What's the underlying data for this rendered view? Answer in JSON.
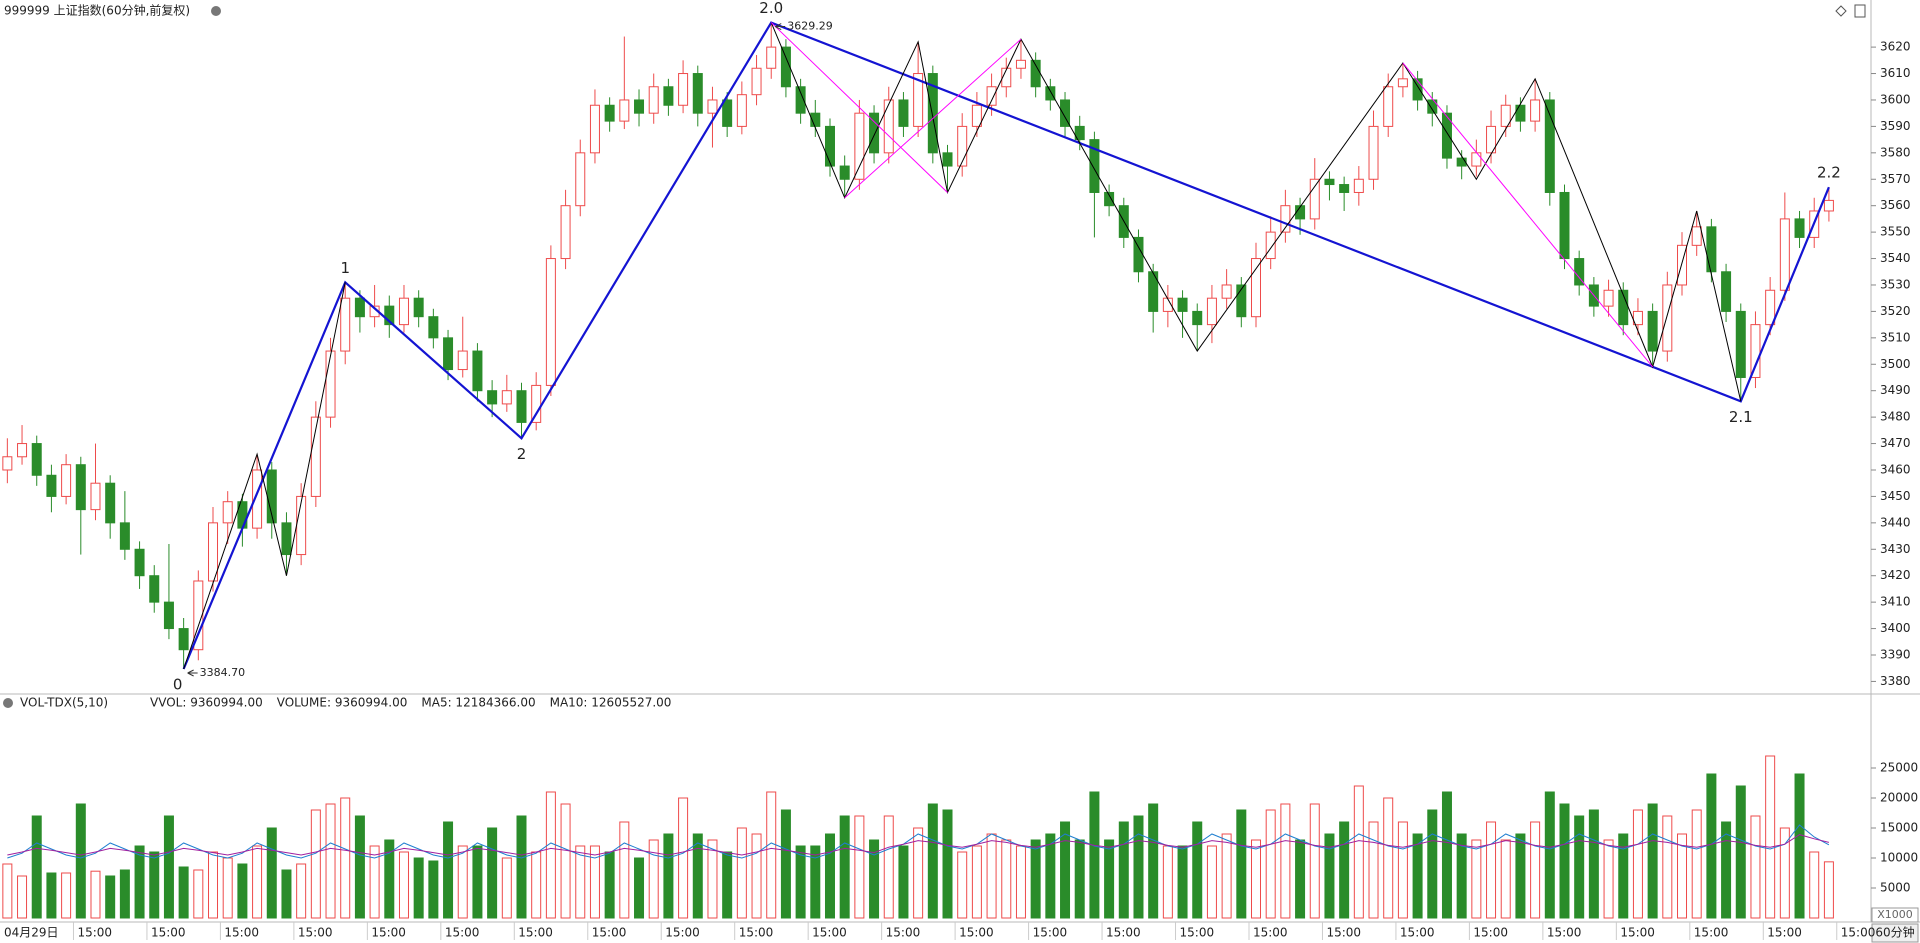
{
  "chart_data": {
    "type": "candlestick",
    "title": "999999 上证指数(60分钟,前复权)",
    "period": "60分钟",
    "up_color": "#ee4b4b",
    "down_color": "#2a8c2a",
    "ylim": [
      3376,
      3629.5
    ],
    "yticks": [
      3380,
      3390,
      3400,
      3410,
      3420,
      3430,
      3440,
      3450,
      3460,
      3470,
      3480,
      3490,
      3500,
      3510,
      3520,
      3530,
      3540,
      3550,
      3560,
      3570,
      3580,
      3590,
      3600,
      3610,
      3620
    ],
    "grid": false,
    "xticklabels": [
      "04月29日",
      "15:00",
      "15:00",
      "15:00",
      "15:00",
      "15:00",
      "15:00",
      "15:00",
      "15:00",
      "15:00",
      "15:00",
      "15:00",
      "15:00",
      "15:00",
      "15:00",
      "15:00",
      "15:00",
      "15:00",
      "15:00",
      "15:00",
      "15:00",
      "15:00",
      "15:00",
      "15:00",
      "15:00",
      "15:00"
    ],
    "candles": [
      [
        3460,
        3472,
        3455,
        3465
      ],
      [
        3465,
        3477,
        3462,
        3470
      ],
      [
        3470,
        3473,
        3454,
        3458
      ],
      [
        3458,
        3462,
        3444,
        3450
      ],
      [
        3450,
        3466,
        3447,
        3462
      ],
      [
        3462,
        3465,
        3428,
        3445
      ],
      [
        3445,
        3470,
        3441,
        3455
      ],
      [
        3455,
        3458,
        3434,
        3440
      ],
      [
        3440,
        3452,
        3426,
        3430
      ],
      [
        3430,
        3433,
        3415,
        3420
      ],
      [
        3420,
        3424,
        3406,
        3410
      ],
      [
        3410,
        3432,
        3396,
        3400
      ],
      [
        3400,
        3404,
        3384.7,
        3392
      ],
      [
        3392,
        3422,
        3388,
        3418
      ],
      [
        3418,
        3446,
        3414,
        3440
      ],
      [
        3440,
        3452,
        3432,
        3448
      ],
      [
        3448,
        3451,
        3431,
        3438
      ],
      [
        3438,
        3466,
        3434,
        3460
      ],
      [
        3460,
        3463,
        3434,
        3440
      ],
      [
        3440,
        3444,
        3420,
        3428
      ],
      [
        3428,
        3455,
        3424,
        3450
      ],
      [
        3450,
        3486,
        3446,
        3480
      ],
      [
        3480,
        3510,
        3476,
        3505
      ],
      [
        3505,
        3531,
        3500,
        3525
      ],
      [
        3525,
        3528,
        3512,
        3518
      ],
      [
        3518,
        3530,
        3514,
        3522
      ],
      [
        3522,
        3526,
        3510,
        3515
      ],
      [
        3515,
        3530,
        3512,
        3525
      ],
      [
        3525,
        3528,
        3514,
        3518
      ],
      [
        3518,
        3521,
        3506,
        3510
      ],
      [
        3510,
        3513,
        3494,
        3498
      ],
      [
        3498,
        3518,
        3495,
        3505
      ],
      [
        3505,
        3508,
        3486,
        3490
      ],
      [
        3490,
        3494,
        3480,
        3485
      ],
      [
        3485,
        3496,
        3482,
        3490
      ],
      [
        3490,
        3493,
        3472,
        3478
      ],
      [
        3478,
        3497,
        3475,
        3492
      ],
      [
        3492,
        3545,
        3488,
        3540
      ],
      [
        3540,
        3566,
        3536,
        3560
      ],
      [
        3560,
        3585,
        3556,
        3580
      ],
      [
        3580,
        3604,
        3576,
        3598
      ],
      [
        3598,
        3601,
        3588,
        3592
      ],
      [
        3592,
        3624,
        3589,
        3600
      ],
      [
        3600,
        3604,
        3590,
        3595
      ],
      [
        3595,
        3610,
        3591,
        3605
      ],
      [
        3605,
        3608,
        3594,
        3598
      ],
      [
        3598,
        3615,
        3595,
        3610
      ],
      [
        3610,
        3613,
        3590,
        3595
      ],
      [
        3595,
        3605,
        3582,
        3600
      ],
      [
        3600,
        3603,
        3586,
        3590
      ],
      [
        3590,
        3607,
        3587,
        3602
      ],
      [
        3602,
        3617,
        3598,
        3612
      ],
      [
        3612,
        3629.29,
        3608,
        3620
      ],
      [
        3620,
        3623,
        3601,
        3605
      ],
      [
        3605,
        3608,
        3591,
        3595
      ],
      [
        3595,
        3600,
        3586,
        3590
      ],
      [
        3590,
        3593,
        3571,
        3575
      ],
      [
        3575,
        3579,
        3563,
        3570
      ],
      [
        3570,
        3600,
        3566,
        3595
      ],
      [
        3595,
        3598,
        3576,
        3580
      ],
      [
        3580,
        3605,
        3576,
        3600
      ],
      [
        3600,
        3603,
        3586,
        3590
      ],
      [
        3590,
        3622,
        3586,
        3610
      ],
      [
        3610,
        3613,
        3576,
        3580
      ],
      [
        3580,
        3583,
        3565,
        3575
      ],
      [
        3575,
        3595,
        3571,
        3590
      ],
      [
        3590,
        3603,
        3586,
        3598
      ],
      [
        3598,
        3610,
        3594,
        3605
      ],
      [
        3605,
        3616,
        3601,
        3612
      ],
      [
        3612,
        3623,
        3608,
        3615
      ],
      [
        3615,
        3618,
        3601,
        3605
      ],
      [
        3605,
        3608,
        3596,
        3600
      ],
      [
        3600,
        3603,
        3586,
        3590
      ],
      [
        3590,
        3594,
        3581,
        3585
      ],
      [
        3585,
        3588,
        3548,
        3565
      ],
      [
        3565,
        3568,
        3556,
        3560
      ],
      [
        3560,
        3563,
        3544,
        3548
      ],
      [
        3548,
        3551,
        3531,
        3535
      ],
      [
        3535,
        3538,
        3512,
        3520
      ],
      [
        3520,
        3530,
        3514,
        3525
      ],
      [
        3525,
        3528,
        3510,
        3520
      ],
      [
        3520,
        3523,
        3505,
        3515
      ],
      [
        3515,
        3530,
        3508,
        3525
      ],
      [
        3525,
        3536,
        3521,
        3530
      ],
      [
        3530,
        3533,
        3514,
        3518
      ],
      [
        3518,
        3546,
        3514,
        3540
      ],
      [
        3540,
        3556,
        3536,
        3550
      ],
      [
        3550,
        3566,
        3546,
        3560
      ],
      [
        3560,
        3563,
        3549,
        3555
      ],
      [
        3555,
        3578,
        3551,
        3570
      ],
      [
        3570,
        3573,
        3562,
        3568
      ],
      [
        3568,
        3571,
        3558,
        3565
      ],
      [
        3565,
        3575,
        3560,
        3570
      ],
      [
        3570,
        3596,
        3566,
        3590
      ],
      [
        3590,
        3610,
        3586,
        3605
      ],
      [
        3605,
        3614,
        3601,
        3608
      ],
      [
        3608,
        3611,
        3596,
        3600
      ],
      [
        3600,
        3603,
        3590,
        3595
      ],
      [
        3595,
        3598,
        3574,
        3578
      ],
      [
        3578,
        3581,
        3570,
        3575
      ],
      [
        3575,
        3585,
        3571,
        3580
      ],
      [
        3580,
        3596,
        3576,
        3590
      ],
      [
        3590,
        3602,
        3586,
        3598
      ],
      [
        3598,
        3601,
        3588,
        3592
      ],
      [
        3592,
        3608,
        3588,
        3600
      ],
      [
        3600,
        3603,
        3560,
        3565
      ],
      [
        3565,
        3568,
        3536,
        3540
      ],
      [
        3540,
        3543,
        3526,
        3530
      ],
      [
        3530,
        3533,
        3518,
        3522
      ],
      [
        3522,
        3532,
        3518,
        3528
      ],
      [
        3528,
        3531,
        3511,
        3515
      ],
      [
        3515,
        3525,
        3511,
        3520
      ],
      [
        3520,
        3523,
        3499,
        3505
      ],
      [
        3505,
        3535,
        3501,
        3530
      ],
      [
        3530,
        3550,
        3526,
        3545
      ],
      [
        3545,
        3558,
        3541,
        3552
      ],
      [
        3552,
        3555,
        3531,
        3535
      ],
      [
        3535,
        3538,
        3516,
        3520
      ],
      [
        3520,
        3523,
        3486,
        3495
      ],
      [
        3495,
        3520,
        3491,
        3515
      ],
      [
        3515,
        3533,
        3511,
        3528
      ],
      [
        3528,
        3565,
        3524,
        3555
      ],
      [
        3555,
        3558,
        3544,
        3548
      ],
      [
        3548,
        3563,
        3544,
        3558
      ],
      [
        3558,
        3567,
        3554,
        3562
      ]
    ],
    "lines": [
      {
        "color": "#1414d2",
        "width": 2.2,
        "labels": [
          "0",
          "1",
          "2",
          "2.0",
          "2.1",
          "2.2"
        ],
        "points": [
          [
            12,
            3384.7
          ],
          [
            23,
            3531
          ],
          [
            35,
            3472
          ],
          [
            52,
            3629.29
          ],
          [
            118,
            3486
          ],
          [
            124,
            3567
          ]
        ]
      },
      {
        "color": "#000000",
        "width": 1,
        "points": [
          [
            12,
            3384.7
          ],
          [
            17,
            3466
          ],
          [
            19,
            3420
          ],
          [
            23,
            3531
          ]
        ]
      },
      {
        "color": "#000000",
        "width": 1,
        "points": [
          [
            52,
            3629.29
          ],
          [
            57,
            3563
          ],
          [
            62,
            3622
          ],
          [
            64,
            3565
          ],
          [
            69,
            3623
          ],
          [
            81,
            3505
          ],
          [
            95,
            3614
          ],
          [
            100,
            3570
          ],
          [
            104,
            3608
          ],
          [
            112,
            3499
          ],
          [
            115,
            3558
          ],
          [
            118,
            3486
          ]
        ]
      },
      {
        "color": "#ff00ff",
        "width": 1,
        "points": [
          [
            52,
            3629.29
          ],
          [
            64,
            3565
          ]
        ]
      },
      {
        "color": "#ff00ff",
        "width": 1,
        "points": [
          [
            57,
            3563
          ],
          [
            69,
            3623
          ]
        ]
      },
      {
        "color": "#ff00ff",
        "width": 1,
        "points": [
          [
            95,
            3614
          ],
          [
            112,
            3499
          ]
        ]
      }
    ],
    "annotations": [
      {
        "text": "3384.70",
        "index": 12,
        "price": 3384.7
      },
      {
        "text": "3629.29",
        "index": 52,
        "price": 3629.29
      }
    ],
    "volume": {
      "title": "VOL-TDX(5,10)",
      "unit": "X1000",
      "ylim": [
        0,
        34000
      ],
      "yticks": [
        5000,
        10000,
        15000,
        20000,
        25000
      ],
      "labels": [
        {
          "text": "VVOL: 9360994.00",
          "color": "#222222"
        },
        {
          "text": "VOLUME: 9360994.00",
          "color": "#1f7fd0"
        },
        {
          "text": "MA5: 12184366.00",
          "color": "#1f7fd0"
        },
        {
          "text": "MA10: 12605527.00",
          "color": "#a0209f"
        }
      ],
      "values": [
        9000,
        7000,
        17000,
        7500,
        7500,
        19000,
        7800,
        7000,
        8000,
        12000,
        11000,
        17000,
        8500,
        8000,
        11000,
        10000,
        9000,
        12000,
        15000,
        8000,
        9000,
        18000,
        19000,
        20000,
        17000,
        12000,
        13000,
        11000,
        10000,
        9500,
        16000,
        12000,
        12000,
        15000,
        10000,
        17000,
        11000,
        21000,
        19000,
        12000,
        12000,
        11000,
        16000,
        10000,
        13000,
        14000,
        20000,
        14000,
        13000,
        11000,
        15000,
        14000,
        21000,
        18000,
        12000,
        12000,
        14000,
        17000,
        17000,
        13000,
        17000,
        12000,
        15000,
        19000,
        18000,
        11000,
        12000,
        14000,
        13000,
        12000,
        13000,
        14000,
        16000,
        13000,
        21000,
        13000,
        16000,
        17000,
        19000,
        12000,
        12000,
        16000,
        12000,
        14000,
        18000,
        13000,
        18000,
        19000,
        13000,
        19000,
        14000,
        16000,
        22000,
        16000,
        20000,
        16000,
        14000,
        18000,
        21000,
        14000,
        13000,
        16000,
        13000,
        14000,
        16000,
        21000,
        19000,
        17000,
        18000,
        13000,
        14000,
        18000,
        19000,
        17000,
        14000,
        18000,
        24000,
        16000,
        22000,
        17000,
        27000,
        15000,
        24000,
        11000,
        9361
      ],
      "ma": [
        {
          "color": "#1f7fd0",
          "values": [
            10000,
            10800,
            12500,
            11500,
            10500,
            10000,
            10800,
            12500,
            11500,
            10500,
            10000,
            10800,
            12500,
            11500,
            10500,
            10000,
            10800,
            12500,
            11500,
            10500,
            10000,
            10800,
            12500,
            11500,
            10500,
            10000,
            10800,
            12500,
            11500,
            10500,
            10000,
            10800,
            12500,
            11500,
            10500,
            10000,
            10800,
            12500,
            11500,
            10500,
            10000,
            10800,
            12500,
            11500,
            10500,
            10000,
            10800,
            12500,
            11500,
            10500,
            10000,
            10800,
            12500,
            11500,
            10500,
            10000,
            10800,
            12500,
            11500,
            10500,
            11500,
            12300,
            14000,
            13000,
            12000,
            11500,
            12300,
            14000,
            13000,
            12000,
            11500,
            12300,
            14000,
            13000,
            12000,
            11500,
            12300,
            14000,
            13000,
            12000,
            11500,
            12300,
            14000,
            13000,
            12000,
            11500,
            12300,
            14000,
            13000,
            12000,
            11500,
            12300,
            14000,
            13000,
            12000,
            11500,
            12300,
            14000,
            13000,
            12000,
            11500,
            12300,
            14000,
            13000,
            12000,
            11500,
            12300,
            14000,
            13000,
            12000,
            11500,
            12300,
            14000,
            13000,
            12000,
            11500,
            12300,
            14000,
            13000,
            12000,
            11500,
            12300,
            15500,
            13500,
            12200
          ]
        },
        {
          "color": "#a0209f",
          "values": [
            10500,
            11000,
            11600,
            11300,
            10900,
            10500,
            11000,
            11600,
            11300,
            10900,
            10500,
            11000,
            11600,
            11300,
            10900,
            10500,
            11000,
            11600,
            11300,
            10900,
            10500,
            11000,
            11600,
            11300,
            10900,
            10500,
            11000,
            11600,
            11300,
            10900,
            10500,
            11000,
            11600,
            11300,
            10900,
            10500,
            11000,
            11600,
            11300,
            10900,
            10500,
            11000,
            11600,
            11300,
            10900,
            10500,
            11000,
            11600,
            11300,
            10900,
            10500,
            11000,
            11600,
            11300,
            10900,
            10500,
            11000,
            11600,
            11300,
            10900,
            11800,
            12300,
            12900,
            12600,
            12100,
            11800,
            12300,
            12900,
            12600,
            12100,
            11800,
            12300,
            12900,
            12600,
            12100,
            11800,
            12300,
            12900,
            12600,
            12100,
            11800,
            12300,
            12900,
            12600,
            12100,
            11800,
            12300,
            12900,
            12600,
            12100,
            11800,
            12300,
            12900,
            12600,
            12100,
            11800,
            12300,
            12900,
            12600,
            12100,
            11800,
            12300,
            12900,
            12600,
            12100,
            11800,
            12300,
            12900,
            12600,
            12100,
            11800,
            12300,
            12900,
            12600,
            12100,
            11800,
            12300,
            12900,
            12600,
            12100,
            11800,
            12300,
            13900,
            13200,
            12600
          ]
        }
      ]
    }
  }
}
